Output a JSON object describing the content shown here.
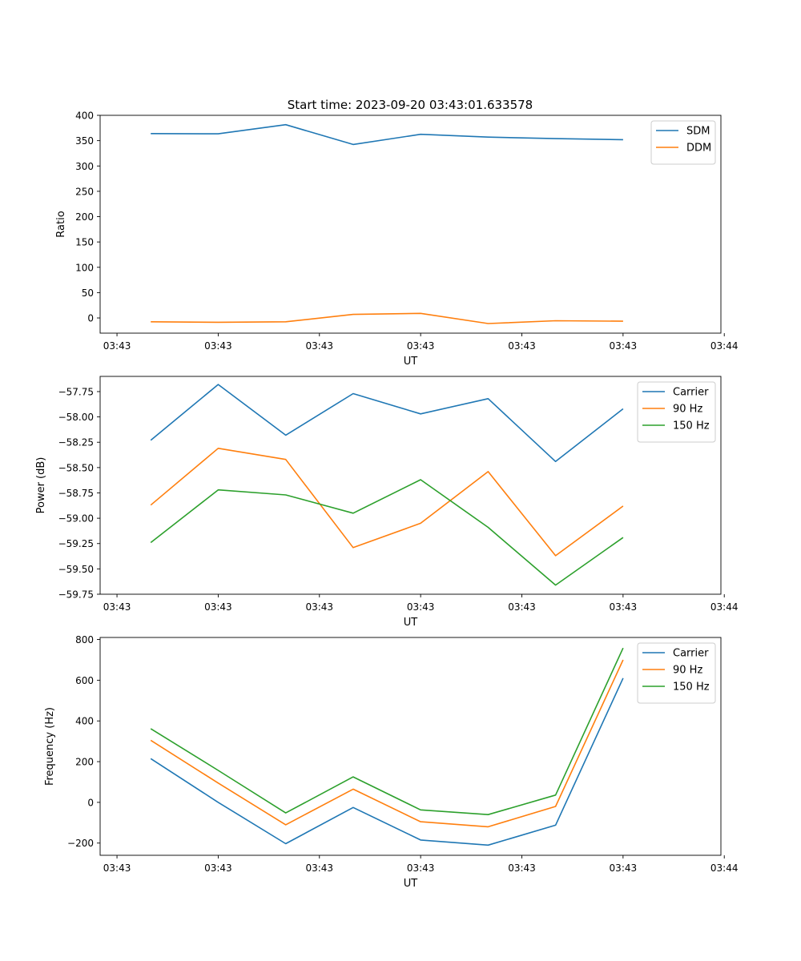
{
  "figure_title": "Start time: 2023-09-20 03:43:01.633578",
  "colors": {
    "c0": "#1f77b4",
    "c1": "#ff7f0e",
    "c2": "#2ca02c"
  },
  "chart_data": [
    {
      "type": "line",
      "title": "Start time: 2023-09-20 03:43:01.633578",
      "xlabel": "UT",
      "ylabel": "Ratio",
      "xlim": [
        -0.75,
        8.45
      ],
      "ylim": [
        -30,
        400
      ],
      "x_ticks": [
        -0.5,
        1,
        2.5,
        4,
        5.5,
        7,
        8.5
      ],
      "x_tick_labels": [
        "03:43",
        "03:43",
        "03:43",
        "03:43",
        "03:43",
        "03:43",
        "03:44"
      ],
      "y_ticks": [
        0,
        50,
        100,
        150,
        200,
        250,
        300,
        350,
        400
      ],
      "y_tick_labels": [
        "0",
        "50",
        "100",
        "150",
        "200",
        "250",
        "300",
        "350",
        "400"
      ],
      "legend": "top-right",
      "x": [
        0,
        1,
        2,
        3,
        4,
        5,
        6,
        7
      ],
      "series": [
        {
          "name": "SDM",
          "color": "#1f77b4",
          "values": [
            364,
            363.5,
            381.5,
            342.5,
            362.5,
            357,
            354,
            352
          ]
        },
        {
          "name": "DDM",
          "color": "#ff7f0e",
          "values": [
            -7.5,
            -8.5,
            -7.5,
            7,
            9,
            -11,
            -5.5,
            -6.5
          ]
        }
      ]
    },
    {
      "type": "line",
      "title": "",
      "xlabel": "UT",
      "ylabel": "Power (dB)",
      "xlim": [
        -0.75,
        8.45
      ],
      "ylim": [
        -59.75,
        -57.6
      ],
      "x_ticks": [
        -0.5,
        1,
        2.5,
        4,
        5.5,
        7,
        8.5
      ],
      "x_tick_labels": [
        "03:43",
        "03:43",
        "03:43",
        "03:43",
        "03:43",
        "03:43",
        "03:44"
      ],
      "y_ticks": [
        -59.75,
        -59.5,
        -59.25,
        -59.0,
        -58.75,
        -58.5,
        -58.25,
        -58.0,
        -57.75
      ],
      "y_tick_labels": [
        "−59.75",
        "−59.50",
        "−59.25",
        "−59.00",
        "−58.75",
        "−58.50",
        "−58.25",
        "−58.00",
        "−57.75"
      ],
      "legend": "top-right",
      "x": [
        0,
        1,
        2,
        3,
        4,
        5,
        6,
        7
      ],
      "series": [
        {
          "name": "Carrier",
          "color": "#1f77b4",
          "values": [
            -58.23,
            -57.68,
            -58.18,
            -57.77,
            -57.97,
            -57.82,
            -58.44,
            -57.92
          ]
        },
        {
          "name": "90 Hz",
          "color": "#ff7f0e",
          "values": [
            -58.87,
            -58.31,
            -58.42,
            -59.29,
            -59.05,
            -58.54,
            -59.37,
            -58.88
          ]
        },
        {
          "name": "150 Hz",
          "color": "#2ca02c",
          "values": [
            -59.24,
            -58.72,
            -58.77,
            -58.95,
            -58.62,
            -59.09,
            -59.66,
            -59.19
          ]
        }
      ]
    },
    {
      "type": "line",
      "title": "",
      "xlabel": "UT",
      "ylabel": "Frequency (Hz)",
      "xlim": [
        -0.75,
        8.45
      ],
      "ylim": [
        -260,
        810
      ],
      "x_ticks": [
        -0.5,
        1,
        2.5,
        4,
        5.5,
        7,
        8.5
      ],
      "x_tick_labels": [
        "03:43",
        "03:43",
        "03:43",
        "03:43",
        "03:43",
        "03:43",
        "03:44"
      ],
      "y_ticks": [
        -200,
        0,
        200,
        400,
        600,
        800
      ],
      "y_tick_labels": [
        "−200",
        "0",
        "200",
        "400",
        "600",
        "800"
      ],
      "legend": "top-right",
      "x": [
        0,
        1,
        2,
        3,
        4,
        5,
        6,
        7
      ],
      "series": [
        {
          "name": "Carrier",
          "color": "#1f77b4",
          "values": [
            215,
            0,
            -203,
            -25,
            -185,
            -210,
            -112,
            610
          ]
        },
        {
          "name": "90 Hz",
          "color": "#ff7f0e",
          "values": [
            305,
            95,
            -110,
            65,
            -95,
            -120,
            -20,
            700
          ]
        },
        {
          "name": "150 Hz",
          "color": "#2ca02c",
          "values": [
            362,
            157,
            -52,
            125,
            -37,
            -60,
            36,
            758
          ]
        }
      ]
    }
  ]
}
